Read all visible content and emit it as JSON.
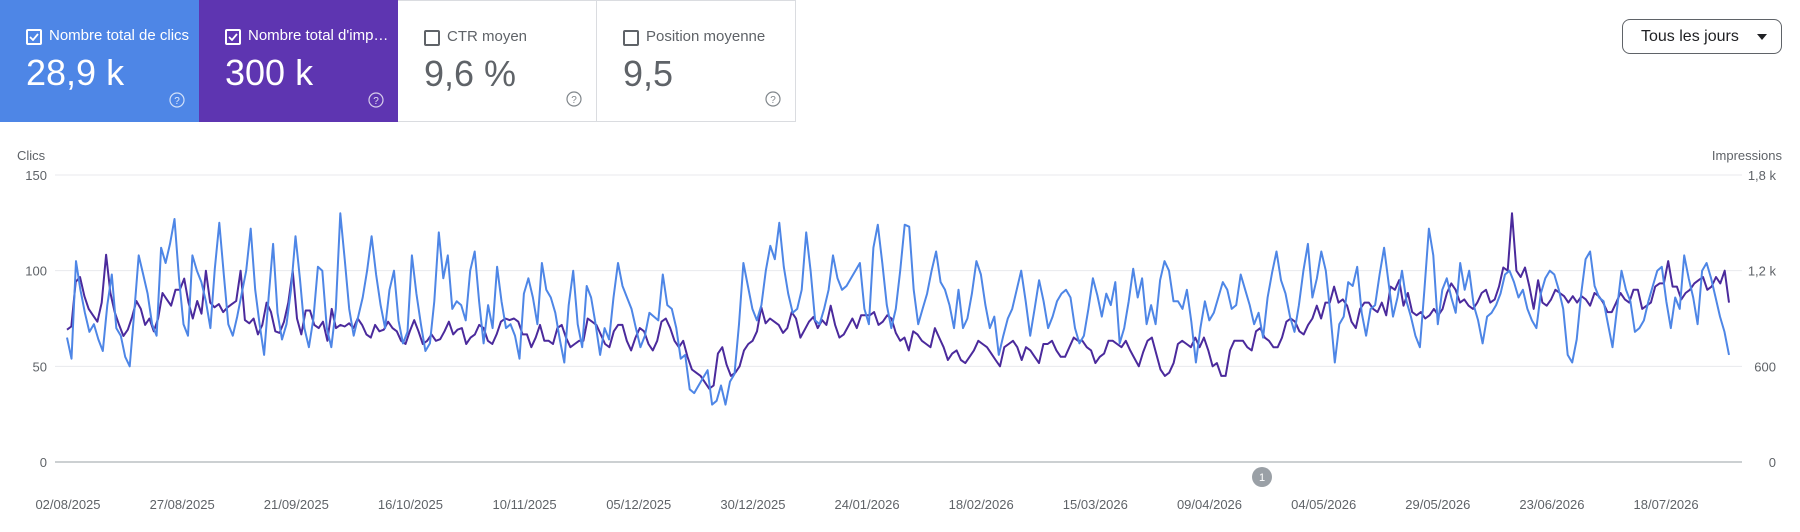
{
  "metrics": [
    {
      "label": "Nombre total de clics",
      "value": "28,9 k",
      "checked": true,
      "color": "#4e86e6"
    },
    {
      "label": "Nombre total d'impressions",
      "value": "300 k",
      "checked": true,
      "color": "#5e35b1"
    },
    {
      "label": "CTR moyen",
      "value": "9,6 %",
      "checked": false
    },
    {
      "label": "Position moyenne",
      "value": "9,5",
      "checked": false
    }
  ],
  "period_select": {
    "value": "Tous les jours"
  },
  "annotation_marker": "1",
  "chart_data": {
    "type": "line",
    "xlabel": "",
    "left_axis": {
      "label": "Clics",
      "ticks": [
        "0",
        "50",
        "100",
        "150"
      ],
      "range": [
        0,
        150
      ]
    },
    "right_axis": {
      "label": "Impressions",
      "ticks": [
        "0",
        "600",
        "1,2 k",
        "1,8 k"
      ],
      "range": [
        0,
        1800
      ]
    },
    "x_tick_labels": [
      "02/08/2025",
      "27/08/2025",
      "21/09/2025",
      "16/10/2025",
      "10/11/2025",
      "05/12/2025",
      "30/12/2025",
      "24/01/2026",
      "18/02/2026",
      "15/03/2026",
      "09/04/2026",
      "04/05/2026",
      "29/05/2026",
      "23/06/2026",
      "18/07/2026"
    ],
    "x_range": [
      "2025-08-02",
      "2026-07-29"
    ],
    "grid": true,
    "series": [
      {
        "name": "Nombre total de clics",
        "axis": "left",
        "color": "#4e86e6",
        "values": [
          65,
          54,
          105,
          90,
          78,
          68,
          72,
          64,
          58,
          82,
          98,
          70,
          66,
          55,
          50,
          78,
          108,
          98,
          88,
          72,
          66,
          112,
          104,
          114,
          127,
          96,
          72,
          66,
          108,
          100,
          94,
          84,
          70,
          101,
          125,
          98,
          72,
          66,
          76,
          88,
          100,
          122,
          90,
          72,
          56,
          86,
          114,
          78,
          64,
          72,
          90,
          118,
          96,
          70,
          60,
          75,
          102,
          100,
          70,
          60,
          80,
          130,
          106,
          80,
          66,
          76,
          86,
          100,
          118,
          98,
          82,
          70,
          90,
          100,
          74,
          62,
          68,
          108,
          88,
          72,
          58,
          62,
          84,
          120,
          96,
          108,
          80,
          84,
          82,
          74,
          100,
          110,
          84,
          62,
          82,
          70,
          102,
          84,
          70,
          72,
          66,
          54,
          88,
          96,
          86,
          72,
          104,
          90,
          86,
          78,
          64,
          52,
          82,
          100,
          72,
          60,
          92,
          86,
          72,
          56,
          70,
          64,
          86,
          104,
          92,
          86,
          80,
          70,
          60,
          66,
          78,
          76,
          74,
          98,
          82,
          80,
          70,
          54,
          56,
          38,
          36,
          40,
          44,
          48,
          30,
          32,
          40,
          30,
          42,
          46,
          72,
          104,
          92,
          80,
          74,
          82,
          100,
          113,
          106,
          125,
          102,
          88,
          78,
          80,
          90,
          120,
          100,
          74,
          72,
          80,
          90,
          108,
          96,
          90,
          92,
          96,
          100,
          104,
          80,
          72,
          112,
          124,
          104,
          82,
          70,
          80,
          100,
          124,
          123,
          90,
          72,
          80,
          88,
          100,
          110,
          94,
          90,
          82,
          70,
          90,
          70,
          75,
          88,
          105,
          98,
          82,
          70,
          76,
          56,
          66,
          75,
          80,
          90,
          100,
          84,
          66,
          80,
          95,
          84,
          70,
          76,
          84,
          88,
          90,
          86,
          70,
          62,
          66,
          80,
          96,
          87,
          76,
          88,
          82,
          94,
          62,
          70,
          84,
          101,
          86,
          96,
          72,
          82,
          72,
          95,
          105,
          100,
          84,
          84,
          80,
          90,
          73,
          52,
          70,
          84,
          74,
          78,
          86,
          94,
          90,
          80,
          82,
          98,
          90,
          82,
          72,
          78,
          65,
          86,
          99,
          110,
          95,
          88,
          76,
          68,
          82,
          100,
          114,
          86,
          96,
          110,
          100,
          78,
          52,
          72,
          76,
          94,
          92,
          102,
          78,
          66,
          80,
          82,
          98,
          112,
          94,
          76,
          86,
          100,
          84,
          76,
          66,
          60,
          90,
          122,
          108,
          72,
          90,
          96,
          86,
          78,
          104,
          90,
          100,
          82,
          74,
          62,
          76,
          78,
          82,
          88,
          98,
          100,
          94,
          86,
          90,
          80,
          74,
          70,
          88,
          96,
          100,
          98,
          90,
          80,
          56,
          52,
          64,
          88,
          106,
          110,
          92,
          86,
          84,
          72,
          60,
          80,
          100,
          90,
          84,
          68,
          70,
          74,
          84,
          92,
          100,
          102,
          84,
          70,
          86,
          80,
          108,
          96,
          86,
          72,
          100,
          104,
          96,
          86,
          76,
          68,
          56
        ]
      },
      {
        "name": "Nombre total d'impressions",
        "axis": "right",
        "color": "#4b2a9c",
        "values": [
          830,
          850,
          1130,
          1160,
          1040,
          960,
          920,
          880,
          1000,
          1300,
          1060,
          940,
          860,
          790,
          830,
          910,
          1010,
          960,
          860,
          900,
          820,
          900,
          1060,
          1020,
          980,
          1080,
          1080,
          1150,
          1000,
          900,
          1010,
          930,
          1200,
          1000,
          970,
          990,
          940,
          970,
          990,
          1010,
          1200,
          890,
          870,
          900,
          800,
          860,
          1000,
          940,
          820,
          810,
          880,
          1000,
          1200,
          900,
          800,
          950,
          950,
          860,
          840,
          880,
          760,
          960,
          840,
          860,
          850,
          870,
          840,
          900,
          860,
          800,
          780,
          860,
          820,
          830,
          880,
          840,
          820,
          760,
          740,
          820,
          890,
          820,
          740,
          760,
          800,
          760,
          770,
          820,
          880,
          800,
          830,
          840,
          740,
          780,
          800,
          860,
          840,
          760,
          740,
          800,
          880,
          900,
          890,
          900,
          880,
          800,
          800,
          720,
          780,
          860,
          760,
          760,
          740,
          840,
          860,
          780,
          720,
          740,
          760,
          760,
          900,
          880,
          860,
          800,
          740,
          720,
          820,
          860,
          860,
          760,
          700,
          780,
          840,
          820,
          740,
          700,
          760,
          880,
          900,
          840,
          760,
          720,
          760,
          660,
          580,
          560,
          540,
          500,
          460,
          480,
          680,
          720,
          610,
          540,
          560,
          600,
          700,
          740,
          760,
          820,
          970,
          870,
          900,
          880,
          860,
          810,
          840,
          940,
          900,
          780,
          830,
          880,
          910,
          840,
          890,
          860,
          980,
          860,
          780,
          800,
          850,
          900,
          840,
          920,
          920,
          920,
          940,
          860,
          880,
          920,
          900,
          810,
          760,
          780,
          700,
          820,
          800,
          760,
          740,
          720,
          840,
          780,
          720,
          640,
          680,
          700,
          640,
          620,
          660,
          700,
          760,
          740,
          720,
          680,
          640,
          600,
          720,
          740,
          760,
          720,
          640,
          720,
          700,
          660,
          620,
          740,
          740,
          760,
          700,
          660,
          660,
          720,
          780,
          760,
          760,
          720,
          700,
          620,
          660,
          680,
          760,
          760,
          740,
          720,
          760,
          700,
          650,
          600,
          690,
          760,
          780,
          680,
          580,
          540,
          560,
          620,
          740,
          760,
          740,
          720,
          780,
          720,
          780,
          700,
          600,
          620,
          540,
          540,
          700,
          760,
          760,
          760,
          720,
          700,
          820,
          840,
          780,
          760,
          720,
          720,
          780,
          880,
          900,
          880,
          820,
          800,
          860,
          900,
          980,
          900,
          1000,
          1000,
          1100,
          1000,
          1020,
          980,
          880,
          840,
          960,
          1000,
          1000,
          960,
          940,
          1000,
          920,
          1100,
          1080,
          1140,
          980,
          1060,
          940,
          920,
          940,
          900,
          920,
          960,
          920,
          960,
          1060,
          1120,
          1080,
          1000,
          1020,
          980,
          960,
          1000,
          1060,
          1080,
          1000,
          1020,
          1100,
          1220,
          1200,
          1560,
          1200,
          1160,
          1220,
          1100,
          960,
          1140,
          1000,
          980,
          1020,
          1080,
          1060,
          1040,
          1000,
          1040,
          1000,
          1040,
          1020,
          980,
          1060,
          1040,
          1000,
          940,
          940,
          1000,
          1060,
          1020,
          1000,
          1080,
          1080,
          960,
          980,
          1000,
          1100,
          1120,
          1120,
          1260,
          1100,
          1100,
          1020,
          1060,
          1080,
          1120,
          1140,
          1160,
          1080,
          1100,
          1160,
          1120,
          1200,
          1000
        ]
      }
    ]
  }
}
